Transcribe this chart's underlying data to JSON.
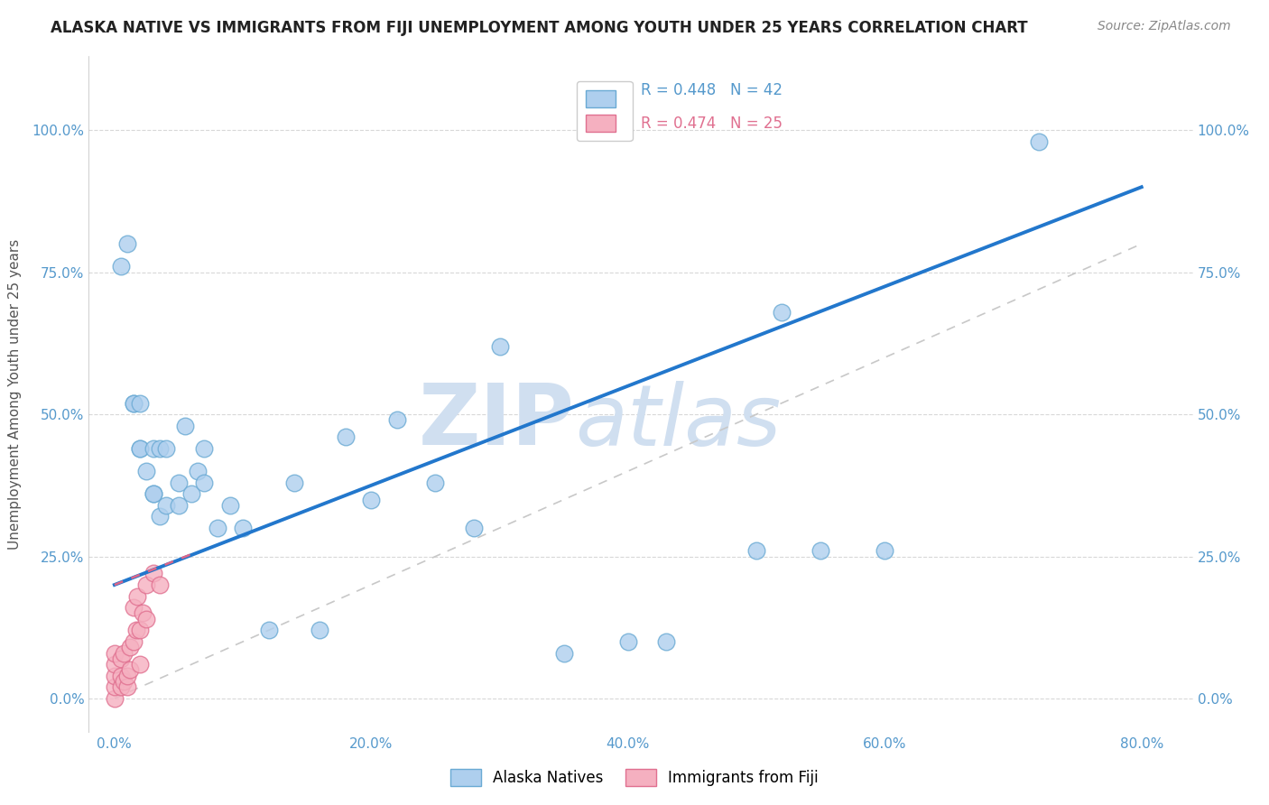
{
  "title": "ALASKA NATIVE VS IMMIGRANTS FROM FIJI UNEMPLOYMENT AMONG YOUTH UNDER 25 YEARS CORRELATION CHART",
  "source": "Source: ZipAtlas.com",
  "xlabel_ticks": [
    "0.0%",
    "20.0%",
    "40.0%",
    "60.0%",
    "80.0%"
  ],
  "xlabel_vals": [
    0.0,
    0.2,
    0.4,
    0.6,
    0.8
  ],
  "ylabel": "Unemployment Among Youth under 25 years",
  "ylabel_ticks": [
    "0.0%",
    "25.0%",
    "50.0%",
    "75.0%",
    "100.0%"
  ],
  "ylabel_vals": [
    0.0,
    0.25,
    0.5,
    0.75,
    1.0
  ],
  "xlim": [
    -0.02,
    0.84
  ],
  "ylim": [
    -0.06,
    1.13
  ],
  "alaska_R": 0.448,
  "alaska_N": 42,
  "fiji_R": 0.474,
  "fiji_N": 25,
  "alaska_color": "#aecfee",
  "alaska_edge": "#6aaad4",
  "fiji_color": "#f5b0c0",
  "fiji_edge": "#e07090",
  "regression_line_color": "#2277cc",
  "fiji_regression_color": "#dd6688",
  "reference_line_color": "#c8c8c8",
  "watermark_color": "#d0dff0",
  "watermark_text": "ZIPatlas",
  "alaska_x": [
    0.005,
    0.01,
    0.015,
    0.015,
    0.02,
    0.02,
    0.02,
    0.025,
    0.03,
    0.03,
    0.03,
    0.035,
    0.035,
    0.04,
    0.04,
    0.05,
    0.05,
    0.055,
    0.06,
    0.065,
    0.07,
    0.07,
    0.08,
    0.09,
    0.1,
    0.12,
    0.14,
    0.16,
    0.18,
    0.2,
    0.22,
    0.25,
    0.28,
    0.3,
    0.35,
    0.4,
    0.43,
    0.5,
    0.52,
    0.55,
    0.6,
    0.72
  ],
  "alaska_y": [
    0.76,
    0.8,
    0.52,
    0.52,
    0.44,
    0.44,
    0.52,
    0.4,
    0.36,
    0.36,
    0.44,
    0.32,
    0.44,
    0.34,
    0.44,
    0.34,
    0.38,
    0.48,
    0.36,
    0.4,
    0.44,
    0.38,
    0.3,
    0.34,
    0.3,
    0.12,
    0.38,
    0.12,
    0.46,
    0.35,
    0.49,
    0.38,
    0.3,
    0.62,
    0.08,
    0.1,
    0.1,
    0.26,
    0.68,
    0.26,
    0.26,
    0.98
  ],
  "fiji_x": [
    0.0,
    0.0,
    0.0,
    0.0,
    0.0,
    0.005,
    0.005,
    0.005,
    0.007,
    0.007,
    0.01,
    0.01,
    0.012,
    0.012,
    0.015,
    0.015,
    0.017,
    0.018,
    0.02,
    0.02,
    0.022,
    0.025,
    0.025,
    0.03,
    0.035
  ],
  "fiji_y": [
    0.0,
    0.02,
    0.04,
    0.06,
    0.08,
    0.02,
    0.04,
    0.07,
    0.03,
    0.08,
    0.02,
    0.04,
    0.05,
    0.09,
    0.1,
    0.16,
    0.12,
    0.18,
    0.06,
    0.12,
    0.15,
    0.14,
    0.2,
    0.22,
    0.2
  ],
  "dot_size": 180,
  "background_color": "#ffffff",
  "grid_color": "#d8d8d8",
  "tick_color": "#5599cc"
}
